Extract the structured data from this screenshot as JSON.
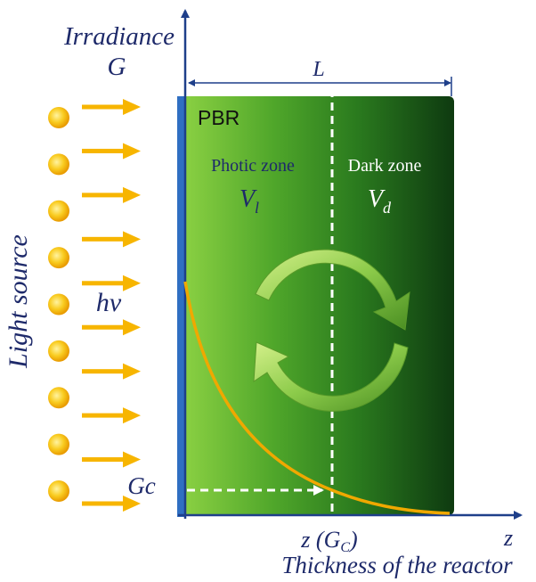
{
  "labels": {
    "y_axis_title": "Irradiance",
    "y_axis_symbol": "G",
    "width_symbol": "L",
    "reactor_label": "PBR",
    "photic_zone": "Photic zone",
    "photic_volume": "V",
    "photic_volume_sub": "l",
    "dark_zone": "Dark zone",
    "dark_volume": "V",
    "dark_volume_sub": "d",
    "light_source": "Light source",
    "photon": "hv",
    "critical_irradiance": "Gc",
    "critical_depth": "z (G",
    "critical_depth_sub": "C",
    "critical_depth_close": ")",
    "x_axis_symbol": "z",
    "x_axis_title": "Thickness of the reactor"
  },
  "light_source": {
    "sun_count": 9,
    "arrow_count": 10
  },
  "colors": {
    "axis": "#1e3f8a",
    "sun": "#f5b800",
    "arrow": "#f7b500",
    "curve": "#f0a800",
    "reactor_light": "#8ed344",
    "reactor_dark": "#0e3a10",
    "cycle_arrow": "#9ed65a",
    "text": "#1e2a6a"
  }
}
